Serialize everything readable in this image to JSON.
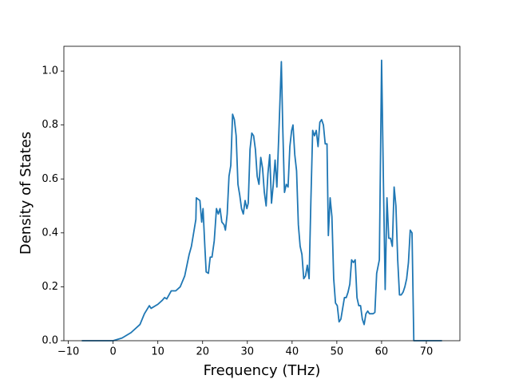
{
  "chart_data": {
    "type": "line",
    "xlabel": "Frequency (THz)",
    "ylabel": "Density of States",
    "color": "#1f77b4",
    "x": [
      -7,
      0,
      2,
      4,
      6,
      7,
      8.1,
      8.5,
      10,
      11,
      11.5,
      12,
      13,
      14,
      15,
      16,
      17,
      17.5,
      18,
      18.5,
      18.6,
      19.4,
      19.8,
      20.1,
      20.5,
      20.8,
      21.3,
      21.7,
      22.1,
      22.6,
      23.1,
      23.5,
      23.9,
      24.3,
      24.8,
      25.1,
      25.5,
      25.9,
      26.3,
      26.7,
      27.1,
      27.5,
      27.9,
      28.3,
      28.7,
      29.1,
      29.5,
      29.9,
      30.2,
      30.6,
      31,
      31.4,
      31.8,
      32.2,
      32.6,
      33,
      33.4,
      33.8,
      34.2,
      34.6,
      35,
      35.4,
      35.8,
      36.2,
      36.6,
      37.0,
      37.6,
      37.9,
      38.3,
      38.7,
      39.1,
      39.5,
      39.9,
      40.2,
      40.6,
      41,
      41.4,
      41.8,
      42.2,
      42.6,
      43,
      43.4,
      43.8,
      44.2,
      44.6,
      45,
      45.4,
      45.8,
      46.2,
      46.6,
      47,
      47.4,
      47.8,
      48.1,
      48.5,
      48.9,
      49.3,
      49.7,
      50.1,
      50.5,
      50.9,
      51.3,
      51.7,
      52.1,
      52.5,
      52.9,
      53.3,
      53.7,
      54.1,
      54.5,
      54.9,
      55.3,
      55.7,
      56.1,
      56.5,
      56.9,
      57.3,
      57.7,
      58.1,
      58.5,
      58.9,
      59.5,
      60.0,
      60.4,
      60.8,
      61.2,
      61.6,
      62,
      62.4,
      62.8,
      63.2,
      63.6,
      64,
      64.4,
      64.8,
      65.2,
      65.6,
      66,
      66.4,
      66.8,
      67.2,
      73.5
    ],
    "values": [
      0,
      0,
      0.01,
      0.03,
      0.06,
      0.1,
      0.13,
      0.12,
      0.135,
      0.15,
      0.16,
      0.155,
      0.185,
      0.185,
      0.2,
      0.24,
      0.32,
      0.35,
      0.4,
      0.45,
      0.53,
      0.52,
      0.44,
      0.49,
      0.35,
      0.255,
      0.25,
      0.31,
      0.31,
      0.37,
      0.49,
      0.47,
      0.49,
      0.44,
      0.43,
      0.41,
      0.47,
      0.61,
      0.65,
      0.84,
      0.82,
      0.76,
      0.58,
      0.54,
      0.49,
      0.47,
      0.52,
      0.49,
      0.51,
      0.71,
      0.77,
      0.76,
      0.71,
      0.61,
      0.58,
      0.68,
      0.64,
      0.55,
      0.5,
      0.62,
      0.69,
      0.51,
      0.58,
      0.67,
      0.57,
      0.75,
      1.035,
      0.8,
      0.55,
      0.58,
      0.57,
      0.72,
      0.78,
      0.8,
      0.69,
      0.63,
      0.43,
      0.35,
      0.32,
      0.23,
      0.24,
      0.28,
      0.23,
      0.52,
      0.78,
      0.76,
      0.78,
      0.72,
      0.81,
      0.82,
      0.8,
      0.73,
      0.73,
      0.39,
      0.53,
      0.46,
      0.23,
      0.14,
      0.13,
      0.07,
      0.08,
      0.12,
      0.16,
      0.16,
      0.18,
      0.21,
      0.3,
      0.29,
      0.3,
      0.16,
      0.13,
      0.13,
      0.08,
      0.06,
      0.1,
      0.11,
      0.1,
      0.1,
      0.1,
      0.105,
      0.25,
      0.3,
      1.04,
      0.6,
      0.19,
      0.53,
      0.38,
      0.38,
      0.35,
      0.57,
      0.5,
      0.3,
      0.17,
      0.17,
      0.18,
      0.2,
      0.23,
      0.29,
      0.41,
      0.4,
      0,
      0
    ],
    "xlim": [
      -11,
      77.5
    ],
    "ylim": [
      0,
      1.092
    ],
    "xticks": [
      {
        "value": -10,
        "label": "−10"
      },
      0,
      10,
      20,
      30,
      40,
      50,
      60,
      70
    ],
    "yticks": [
      {
        "value": 0,
        "label": "0.0"
      },
      {
        "value": 0.2,
        "label": "0.2"
      },
      {
        "value": 0.4,
        "label": "0.4"
      },
      {
        "value": 0.6,
        "label": "0.6"
      },
      {
        "value": 0.8,
        "label": "0.8"
      },
      {
        "value": 1.0,
        "label": "1.0"
      }
    ]
  }
}
